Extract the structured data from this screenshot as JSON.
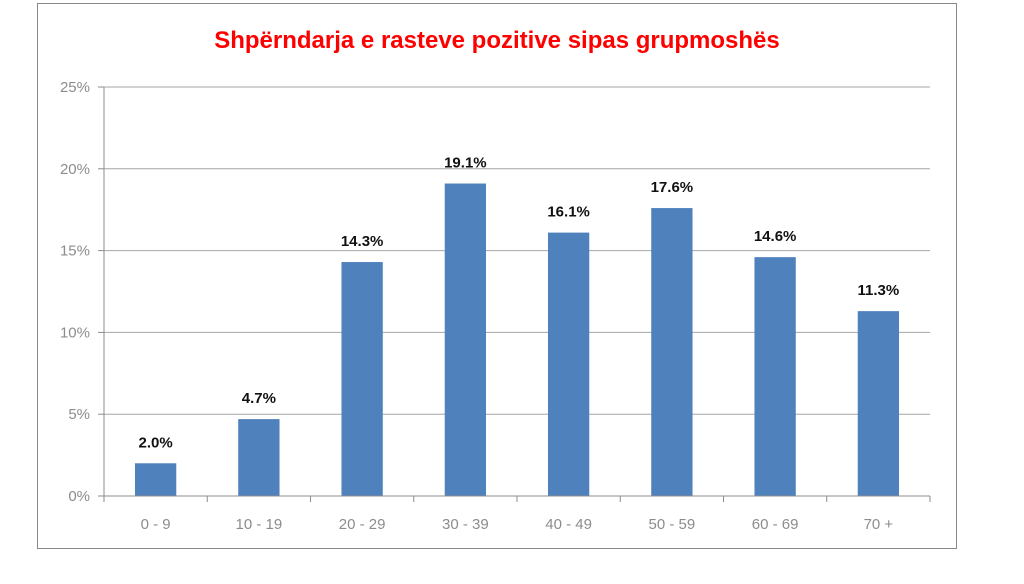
{
  "chart_data": {
    "type": "bar",
    "title": "Shpërndarja e rasteve pozitive sipas grupmoshës",
    "categories": [
      "0 - 9",
      "10 - 19",
      "20 - 29",
      "30 - 39",
      "40 - 49",
      "50 - 59",
      "60 - 69",
      "70 +"
    ],
    "values": [
      2.0,
      4.7,
      14.3,
      19.1,
      16.1,
      17.6,
      14.6,
      11.3
    ],
    "data_labels": [
      "2.0%",
      "4.7%",
      "14.3%",
      "19.1%",
      "16.1%",
      "17.6%",
      "14.6%",
      "11.3%"
    ],
    "y_ticks": [
      "0%",
      "5%",
      "10%",
      "15%",
      "20%",
      "25%"
    ],
    "ylim": [
      0,
      25
    ],
    "y_unit": "percent",
    "xlabel": "",
    "ylabel": "",
    "grid": true,
    "legend": "none",
    "colors": {
      "title": "#ff0000",
      "bar": "#4f81bd",
      "grid": "#a6a6a6",
      "axis": "#8c8c8c"
    }
  }
}
